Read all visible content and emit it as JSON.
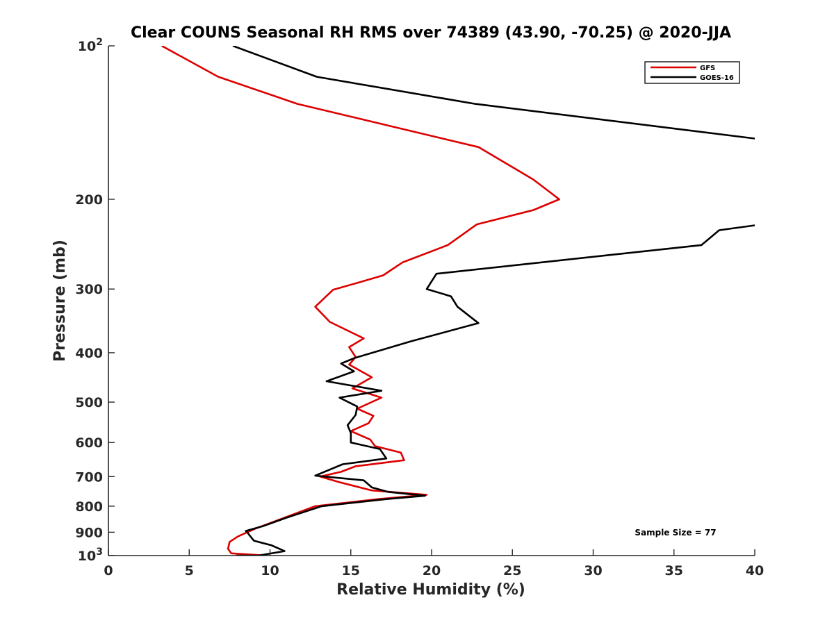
{
  "chart_data": {
    "type": "line",
    "title": "Clear COUNS Seasonal RH RMS over 74389 (43.90, -70.25) @ 2020-JJA",
    "xlabel": "Relative Humidity (%)",
    "ylabel": "Pressure (mb)",
    "xlim": [
      0,
      40
    ],
    "ylim": [
      100,
      1000
    ],
    "yscale": "log",
    "y_reversed": true,
    "grid": false,
    "legend_position": "top-right",
    "annotation": "Sample Size = 77",
    "x_ticks": [
      {
        "value": 0,
        "label": "0"
      },
      {
        "value": 5,
        "label": "5"
      },
      {
        "value": 10,
        "label": "10"
      },
      {
        "value": 15,
        "label": "15"
      },
      {
        "value": 20,
        "label": "20"
      },
      {
        "value": 25,
        "label": "25"
      },
      {
        "value": 30,
        "label": "30"
      },
      {
        "value": 35,
        "label": "35"
      },
      {
        "value": 40,
        "label": "40"
      }
    ],
    "y_ticks": [
      {
        "value": 100,
        "base": "10",
        "exp": "2"
      },
      {
        "value": 200,
        "base": "200",
        "exp": ""
      },
      {
        "value": 300,
        "base": "300",
        "exp": ""
      },
      {
        "value": 400,
        "base": "400",
        "exp": ""
      },
      {
        "value": 500,
        "base": "500",
        "exp": ""
      },
      {
        "value": 600,
        "base": "600",
        "exp": ""
      },
      {
        "value": 700,
        "base": "700",
        "exp": ""
      },
      {
        "value": 800,
        "base": "800",
        "exp": ""
      },
      {
        "value": 900,
        "base": "900",
        "exp": ""
      },
      {
        "value": 1000,
        "base": "10",
        "exp": "3"
      }
    ],
    "series": [
      {
        "name": "GFS",
        "color": "#dd0000",
        "x": [
          3.3,
          6.8,
          11.7,
          22.9,
          26.3,
          27.9,
          26.3,
          22.8,
          21.0,
          18.2,
          17.0,
          15.2,
          13.9,
          12.8,
          13.7,
          15.8,
          14.9,
          15.3,
          14.9,
          16.3,
          15.1,
          16.9,
          15.4,
          16.4,
          16.1,
          15.0,
          16.2,
          16.5,
          18.1,
          18.3,
          15.3,
          14.4,
          13.1,
          14.3,
          16.3,
          19.7,
          16.7,
          12.8,
          10.8,
          9.1,
          8.0,
          7.5,
          7.4,
          7.6,
          9.8
        ],
        "y": [
          100,
          115,
          130,
          158,
          183,
          200,
          210,
          224,
          246,
          266,
          282,
          293,
          301,
          325,
          348,
          375,
          390,
          408,
          422,
          447,
          470,
          490,
          515,
          532,
          550,
          570,
          592,
          610,
          628,
          650,
          668,
          685,
          700,
          718,
          745,
          760,
          775,
          800,
          845,
          885,
          918,
          940,
          970,
          990,
          1000
        ]
      },
      {
        "name": "GOES-16",
        "color": "#000000",
        "x": [
          7.7,
          12.9,
          22.7,
          40.0,
          null,
          40.0,
          37.8,
          36.7,
          20.3,
          19.7,
          21.2,
          21.6,
          22.9,
          18.7,
          15.2,
          14.4,
          15.2,
          13.5,
          16.9,
          14.3,
          15.4,
          15.3,
          14.8,
          15.0,
          15.0,
          16.8,
          17.2,
          14.5,
          12.8,
          15.8,
          16.3,
          17.3,
          19.6,
          17.2,
          13.2,
          11.0,
          9.6,
          8.5,
          8.6,
          8.7,
          9.0,
          10.1,
          10.9,
          9.3,
          7.9
        ],
        "y": [
          100,
          115,
          130,
          152,
          null,
          225,
          230,
          246,
          280,
          300,
          310,
          325,
          350,
          380,
          410,
          420,
          435,
          455,
          475,
          490,
          510,
          530,
          555,
          575,
          600,
          618,
          645,
          662,
          697,
          712,
          735,
          750,
          763,
          775,
          800,
          843,
          875,
          895,
          900,
          910,
          935,
          955,
          980,
          1000,
          1000
        ]
      }
    ]
  }
}
